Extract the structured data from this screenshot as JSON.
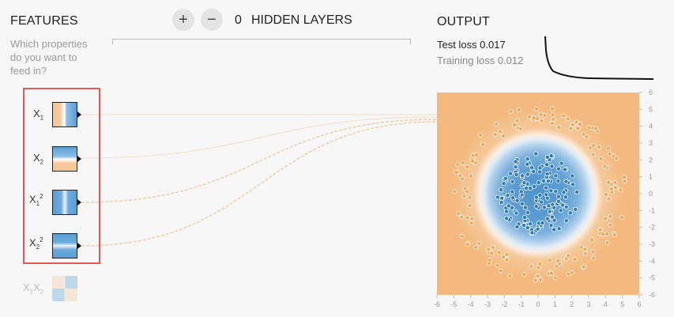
{
  "features": {
    "title": "FEATURES",
    "description": "Which properties do you want to feed in?",
    "items": [
      {
        "id": "x1",
        "base": "X",
        "sub": "1",
        "sup": "",
        "active": true
      },
      {
        "id": "x2",
        "base": "X",
        "sub": "2",
        "sup": "",
        "active": true
      },
      {
        "id": "x1sq",
        "base": "X",
        "sub": "1",
        "sup": "2",
        "active": true
      },
      {
        "id": "x2sq",
        "base": "X",
        "sub": "2",
        "sup": "2",
        "active": true
      },
      {
        "id": "x1x2",
        "base": "X",
        "sub": "1",
        "base2": "X",
        "sub2": "2",
        "active": false
      }
    ]
  },
  "hidden_layers": {
    "add_symbol": "+",
    "remove_symbol": "−",
    "count": "0",
    "label": "HIDDEN LAYERS"
  },
  "output": {
    "title": "OUTPUT",
    "test_loss": "Test loss 0.017",
    "training_loss": "Training loss 0.012"
  },
  "axis_ticks": [
    "6",
    "5",
    "4",
    "3",
    "2",
    "1",
    "0",
    "-1",
    "-2",
    "-3",
    "-4",
    "-5",
    "-6"
  ],
  "x_axis_ticks": [
    "-6",
    "-5",
    "-4",
    "-3",
    "-2",
    "-1",
    "0",
    "1",
    "2",
    "3",
    "4",
    "5",
    "6"
  ],
  "colors": {
    "positive": "#2b78b8",
    "negative": "#f5a44f",
    "selection": "#e05a5a"
  },
  "icons": [
    "plus-icon",
    "minus-icon"
  ]
}
